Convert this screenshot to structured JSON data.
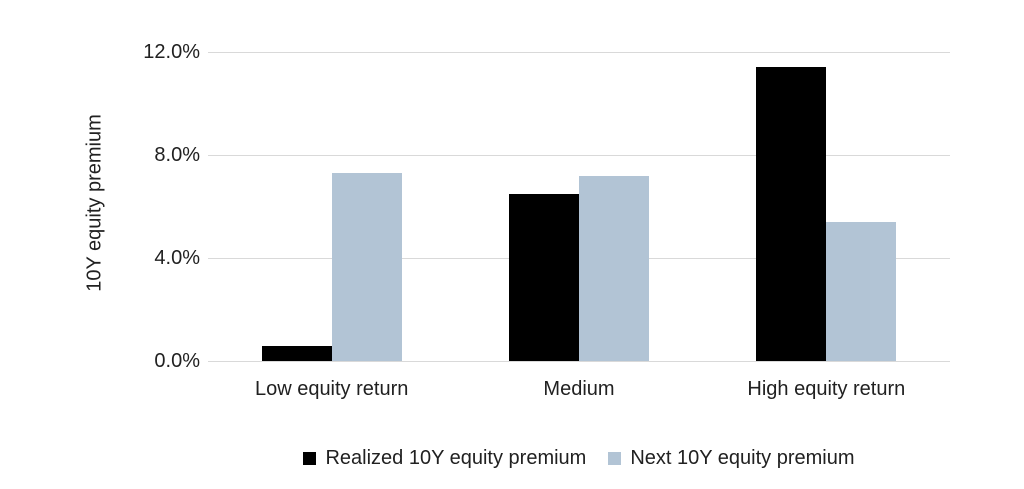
{
  "chart_data": {
    "type": "bar",
    "title": "",
    "xlabel": "",
    "ylabel": "10Y equity premium",
    "categories": [
      "Low equity return",
      "Medium",
      "High equity return"
    ],
    "series": [
      {
        "name": "Realized 10Y equity premium",
        "color": "#000000",
        "values": [
          0.6,
          6.5,
          11.4
        ]
      },
      {
        "name": "Next 10Y equity premium",
        "color": "#b2c4d5",
        "values": [
          7.3,
          7.2,
          5.4
        ]
      }
    ],
    "value_unit": "%",
    "ylim": [
      0,
      12
    ],
    "yticks": [
      {
        "value": 0,
        "label": "0.0%"
      },
      {
        "value": 4,
        "label": "4.0%"
      },
      {
        "value": 8,
        "label": "8.0%"
      },
      {
        "value": 12,
        "label": "12.0%"
      }
    ],
    "grid": true,
    "legend_position": "bottom"
  },
  "colors": {
    "background": "#ffffff",
    "gridline": "#d9d9d9",
    "axis_line": "#d9d9d9",
    "text": "#212121"
  }
}
